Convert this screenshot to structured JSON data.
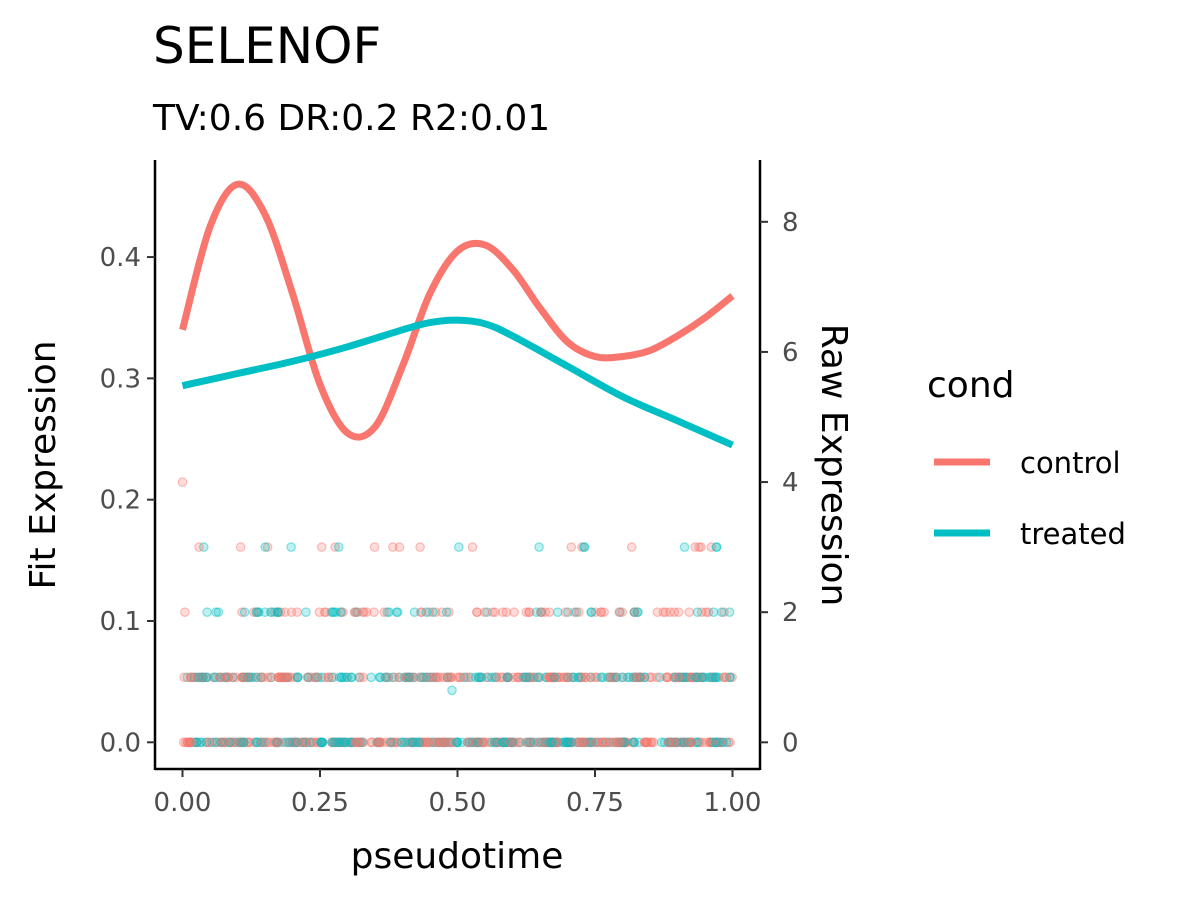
{
  "chart_data": {
    "type": "line",
    "title": "SELENOF",
    "subtitle": "TV:0.6 DR:0.2 R2:0.01",
    "xlabel": "pseudotime",
    "ylabel": "Fit Expression",
    "y2label": "Raw Expression",
    "xlim": [
      -0.05,
      1.05
    ],
    "ylim": [
      -0.022,
      0.48
    ],
    "y2lim": [
      -0.41,
      8.95
    ],
    "x_ticks": [
      0.0,
      0.25,
      0.5,
      0.75,
      1.0
    ],
    "x_tick_labels": [
      "0.00",
      "0.25",
      "0.50",
      "0.75",
      "1.00"
    ],
    "y_ticks": [
      0.0,
      0.1,
      0.2,
      0.3,
      0.4
    ],
    "y_tick_labels": [
      "0.0",
      "0.1",
      "0.2",
      "0.3",
      "0.4"
    ],
    "y2_ticks": [
      0,
      2,
      4,
      6,
      8
    ],
    "y2_tick_labels": [
      "0",
      "2",
      "4",
      "6",
      "8"
    ],
    "legend": {
      "title": "cond",
      "position": "right",
      "entries": [
        {
          "label": "control",
          "color": "#F8766D"
        },
        {
          "label": "treated",
          "color": "#00BFC4"
        }
      ]
    },
    "series": [
      {
        "name": "control",
        "color": "#F8766D",
        "x": [
          0.0,
          0.05,
          0.1,
          0.15,
          0.2,
          0.25,
          0.3,
          0.35,
          0.4,
          0.45,
          0.5,
          0.55,
          0.6,
          0.65,
          0.7,
          0.75,
          0.8,
          0.85,
          0.9,
          0.95,
          1.0
        ],
        "values": [
          0.34,
          0.425,
          0.46,
          0.435,
          0.37,
          0.295,
          0.255,
          0.26,
          0.31,
          0.37,
          0.405,
          0.41,
          0.39,
          0.358,
          0.33,
          0.318,
          0.318,
          0.323,
          0.335,
          0.35,
          0.368
        ]
      },
      {
        "name": "treated",
        "color": "#00BFC4",
        "x": [
          0.0,
          0.1,
          0.2,
          0.3,
          0.4,
          0.45,
          0.5,
          0.55,
          0.6,
          0.7,
          0.8,
          0.9,
          1.0
        ],
        "values": [
          0.294,
          0.304,
          0.314,
          0.326,
          0.34,
          0.346,
          0.348,
          0.345,
          0.335,
          0.31,
          0.285,
          0.265,
          0.245
        ]
      }
    ],
    "raw_points": {
      "description_levels": [
        0,
        1,
        2,
        3,
        4
      ],
      "outliers": [
        {
          "x": 0.0,
          "y": 4.0,
          "cond": "control"
        },
        {
          "x": 0.49,
          "y": 0.8,
          "cond": "treated"
        }
      ]
    }
  }
}
